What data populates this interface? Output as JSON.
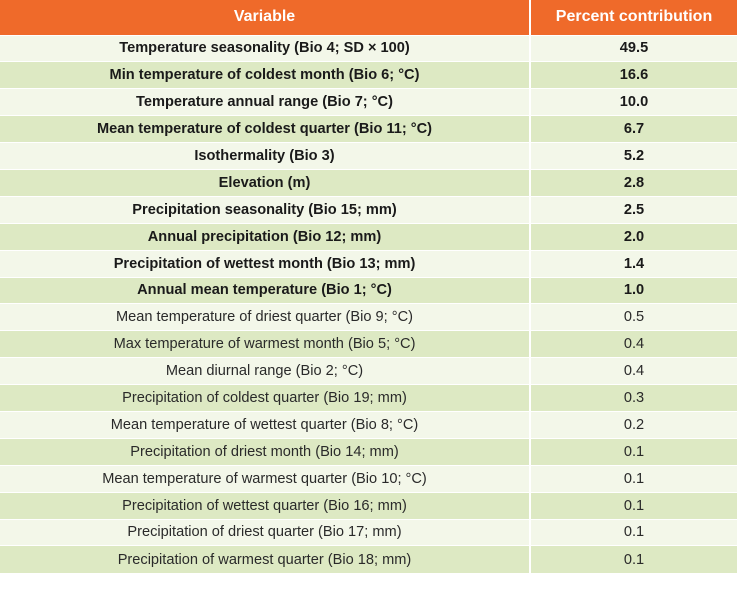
{
  "table": {
    "headers": {
      "variable": "Variable",
      "percent": "Percent contribution"
    },
    "rows": [
      {
        "variable": "Temperature seasonality (Bio 4; SD × 100)",
        "percent": "49.5",
        "bold": true
      },
      {
        "variable": "Min temperature of coldest month (Bio 6; °C)",
        "percent": "16.6",
        "bold": true
      },
      {
        "variable": "Temperature annual range (Bio 7; °C)",
        "percent": "10.0",
        "bold": true
      },
      {
        "variable": "Mean temperature of coldest quarter (Bio 11; °C)",
        "percent": "6.7",
        "bold": true
      },
      {
        "variable": "Isothermality (Bio 3)",
        "percent": "5.2",
        "bold": true
      },
      {
        "variable": "Elevation (m)",
        "percent": "2.8",
        "bold": true
      },
      {
        "variable": "Precipitation seasonality (Bio 15; mm)",
        "percent": "2.5",
        "bold": true
      },
      {
        "variable": "Annual precipitation (Bio 12; mm)",
        "percent": "2.0",
        "bold": true
      },
      {
        "variable": "Precipitation of wettest month (Bio 13; mm)",
        "percent": "1.4",
        "bold": true
      },
      {
        "variable": "Annual mean temperature (Bio 1; °C)",
        "percent": "1.0",
        "bold": true
      },
      {
        "variable": "Mean temperature of driest quarter (Bio 9; °C)",
        "percent": "0.5",
        "bold": false
      },
      {
        "variable": "Max temperature of warmest month (Bio 5; °C)",
        "percent": "0.4",
        "bold": false
      },
      {
        "variable": "Mean diurnal range (Bio 2; °C)",
        "percent": "0.4",
        "bold": false
      },
      {
        "variable": "Precipitation of coldest quarter (Bio 19; mm)",
        "percent": "0.3",
        "bold": false
      },
      {
        "variable": "Mean temperature of wettest quarter (Bio 8; °C)",
        "percent": "0.2",
        "bold": false
      },
      {
        "variable": "Precipitation of driest month (Bio 14; mm)",
        "percent": "0.1",
        "bold": false
      },
      {
        "variable": "Mean temperature of warmest quarter (Bio 10; °C)",
        "percent": "0.1",
        "bold": false
      },
      {
        "variable": "Precipitation of wettest quarter (Bio 16; mm)",
        "percent": "0.1",
        "bold": false
      },
      {
        "variable": "Precipitation of driest quarter (Bio 17; mm)",
        "percent": "0.1",
        "bold": false
      },
      {
        "variable": "Precipitation of warmest quarter (Bio 18; mm)",
        "percent": "0.1",
        "bold": false
      }
    ]
  },
  "colors": {
    "header": "#ef6a2a",
    "row_alt": "#dde9c3",
    "row_plain": "#f3f7e9"
  }
}
